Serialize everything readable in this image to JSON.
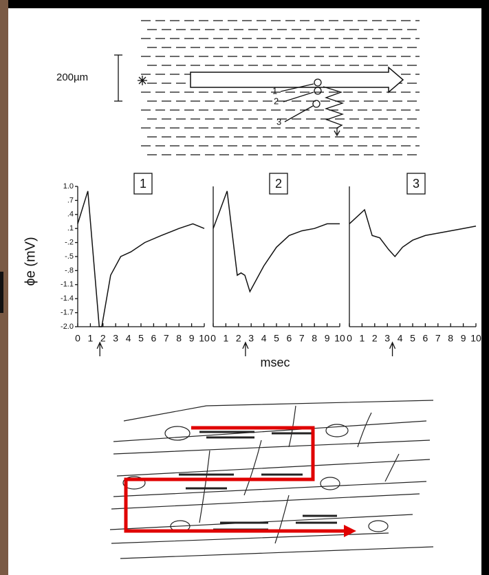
{
  "chart_data": [
    {
      "type": "line",
      "title": "1",
      "y_label": "ϕe (mV)",
      "x": [
        0,
        0.8,
        1.7,
        1.9,
        2.6,
        3.4,
        4.2,
        5.3,
        6.6,
        8,
        9.1,
        10
      ],
      "series": [
        {
          "name": null,
          "color": "#111111",
          "values": [
            0.2,
            0.9,
            -2.0,
            -2.0,
            -0.9,
            -0.5,
            -0.4,
            -0.2,
            -0.05,
            0.1,
            0.2,
            0.1
          ]
        }
      ],
      "xlim": [
        0,
        10
      ],
      "xticks": [
        0,
        1,
        2,
        3,
        4,
        5,
        6,
        7,
        8,
        9,
        10
      ],
      "ylim": [
        -2.0,
        1.0
      ],
      "yticks": [
        {
          "value": 1.0,
          "label": "1.0"
        },
        {
          "value": 0.7,
          "label": ".7"
        },
        {
          "value": 0.4,
          "label": ".4"
        },
        {
          "value": 0.1,
          "label": ".1"
        },
        {
          "value": -0.2,
          "label": "-.2"
        },
        {
          "value": -0.5,
          "label": "-.5"
        },
        {
          "value": -0.8,
          "label": "-.8"
        },
        {
          "value": -1.1,
          "label": "-1.1"
        },
        {
          "value": -1.4,
          "label": "-1.4"
        },
        {
          "value": -1.7,
          "label": "-1.7"
        },
        {
          "value": -2.0,
          "label": "-2.0"
        }
      ],
      "arrow_x": 1.75
    },
    {
      "type": "line",
      "title": "2",
      "x": [
        0,
        1.1,
        1.9,
        2.2,
        2.5,
        2.9,
        4,
        5,
        6,
        7,
        8,
        9,
        10
      ],
      "series": [
        {
          "name": null,
          "color": "#111111",
          "values": [
            0.1,
            0.9,
            -0.9,
            -0.85,
            -0.9,
            -1.25,
            -0.7,
            -0.3,
            -0.05,
            0.05,
            0.1,
            0.2,
            0.2
          ]
        }
      ],
      "xlim": [
        0,
        10
      ],
      "xticks": [
        0,
        1,
        2,
        3,
        4,
        5,
        6,
        7,
        8,
        9,
        10
      ],
      "ylim": [
        -2.0,
        1.0
      ],
      "x_label": "msec",
      "arrow_x": 2.55
    },
    {
      "type": "line",
      "title": "3",
      "x": [
        0,
        1.2,
        1.8,
        2.4,
        3.1,
        3.6,
        4.2,
        5,
        6,
        7,
        8,
        9,
        10
      ],
      "series": [
        {
          "name": null,
          "color": "#111111",
          "values": [
            0.2,
            0.5,
            -0.05,
            -0.1,
            -0.35,
            -0.5,
            -0.3,
            -0.15,
            -0.05,
            0,
            0.05,
            0.1,
            0.15
          ]
        }
      ],
      "xlim": [
        0,
        10
      ],
      "xticks": [
        0,
        1,
        2,
        3,
        4,
        5,
        6,
        7,
        8,
        9,
        10
      ],
      "ylim": [
        -2.0,
        1.0
      ],
      "arrow_x": 3.4
    }
  ],
  "diagram": {
    "scale_label": "200µm",
    "electrodes": [
      "1",
      "2",
      "3"
    ]
  }
}
